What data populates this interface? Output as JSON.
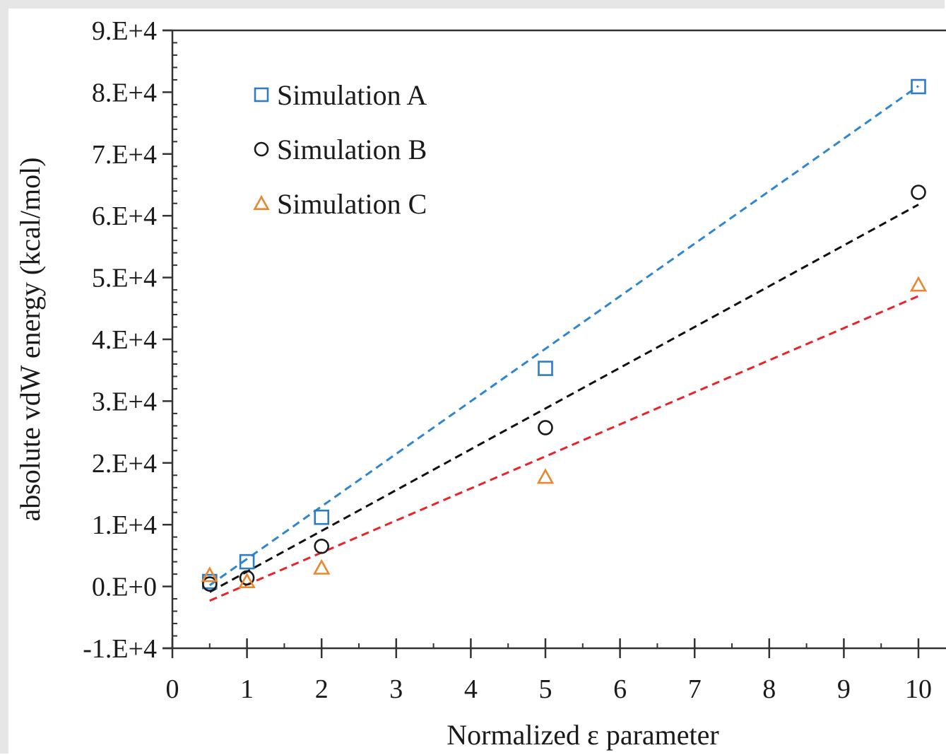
{
  "chart_data": {
    "type": "scatter",
    "title": "",
    "xlabel": "Normalized ε parameter",
    "ylabel": "absolute vdW energy (kcal/mol)",
    "xlim": [
      0,
      10
    ],
    "ylim": [
      -10000,
      90000
    ],
    "xticks": [
      0,
      1,
      2,
      3,
      4,
      5,
      6,
      7,
      8,
      9,
      10
    ],
    "xtick_labels": [
      "0",
      "1",
      "2",
      "3",
      "4",
      "5",
      "6",
      "7",
      "8",
      "9",
      "10"
    ],
    "yticks": [
      -10000,
      0,
      10000,
      20000,
      30000,
      40000,
      50000,
      60000,
      70000,
      80000,
      90000
    ],
    "ytick_labels": [
      "-1.E+4",
      "0.E+0",
      "1.E+4",
      "2.E+4",
      "3.E+4",
      "4.E+4",
      "5.E+4",
      "6.E+4",
      "7.E+4",
      "8.E+4",
      "9.E+4"
    ],
    "grid": false,
    "legend_position": "top-left",
    "series": [
      {
        "name": "Simulation A",
        "marker": "square",
        "color": "#2e7cc4",
        "trend_color": "#2e86d1",
        "x": [
          0.5,
          1,
          2,
          5,
          10
        ],
        "y": [
          800,
          4000,
          11200,
          35300,
          80900
        ],
        "trend": [
          [
            0.5,
            200
          ],
          [
            10,
            81000
          ]
        ]
      },
      {
        "name": "Simulation B",
        "marker": "circle",
        "color": "#1a1a1a",
        "trend_color": "#111111",
        "x": [
          0.5,
          1,
          2,
          5,
          10
        ],
        "y": [
          400,
          1400,
          6500,
          25700,
          63800
        ],
        "trend": [
          [
            0.5,
            -900
          ],
          [
            10,
            61800
          ]
        ]
      },
      {
        "name": "Simulation C",
        "marker": "triangle",
        "color": "#e8872e",
        "trend_color": "#e8242b",
        "x": [
          0.5,
          1,
          2,
          5,
          10
        ],
        "y": [
          1800,
          800,
          3000,
          17700,
          48800
        ],
        "trend": [
          [
            0.5,
            -2300
          ],
          [
            10,
            47000
          ]
        ]
      }
    ]
  }
}
